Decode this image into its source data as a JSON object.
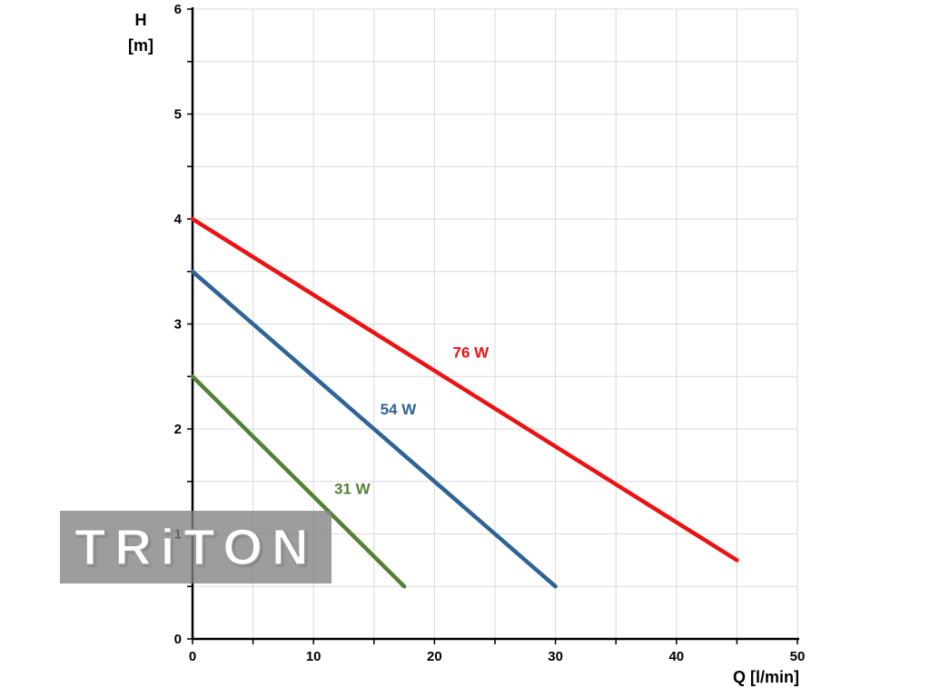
{
  "chart_data": {
    "type": "line",
    "title": "",
    "xlabel": "Q [l/min]",
    "ylabel": "H [m]",
    "ylabel_line1": "H",
    "ylabel_line2": "[m]",
    "xlim": [
      0,
      50
    ],
    "ylim": [
      0,
      6
    ],
    "x_major_ticks": [
      0,
      10,
      20,
      30,
      40,
      50
    ],
    "y_major_ticks": [
      0,
      1,
      2,
      3,
      4,
      5,
      6
    ],
    "x_grid_step": 5,
    "y_grid_step": 0.5,
    "grid": true,
    "grid_color": "#d9d9d9",
    "axis_color": "#000000",
    "legend_position": "inline-labels",
    "series": [
      {
        "name": "76 W",
        "color": "#ee1111",
        "points": [
          [
            0,
            4.0
          ],
          [
            45,
            0.75
          ]
        ],
        "label_pos": [
          23,
          2.68
        ]
      },
      {
        "name": "54 W",
        "color": "#2f6496",
        "points": [
          [
            0,
            3.5
          ],
          [
            30,
            0.5
          ]
        ],
        "label_pos": [
          17,
          2.14
        ]
      },
      {
        "name": "31 W",
        "color": "#548235",
        "points": [
          [
            0,
            2.5
          ],
          [
            17.5,
            0.5
          ]
        ],
        "label_pos": [
          13.2,
          1.38
        ]
      }
    ]
  },
  "watermark": {
    "text": "TRiTON"
  }
}
